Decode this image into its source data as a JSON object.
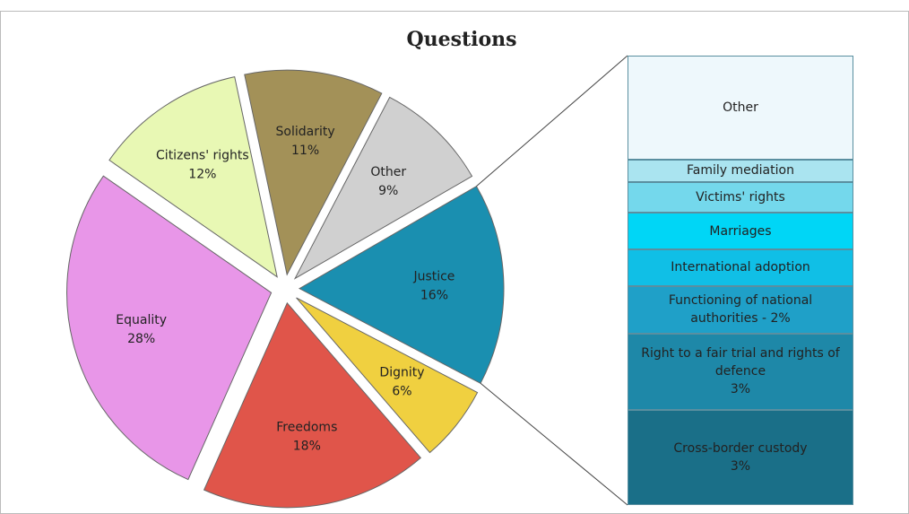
{
  "chart_data": {
    "type": "pie-of-bar",
    "title": "Questions",
    "categories": [
      "Justice",
      "Dignity",
      "Freedoms",
      "Equality",
      "Citizens' rights",
      "Solidarity",
      "Other"
    ],
    "values": [
      16,
      6,
      18,
      28,
      12,
      11,
      9
    ],
    "value_labels": [
      "16%",
      "6%",
      "18%",
      "28%",
      "12%",
      "11%",
      "9%"
    ],
    "colors": [
      "#1a8fb0",
      "#f0d040",
      "#e0554a",
      "#e896e8",
      "#e8f8b4",
      "#a39158",
      "#d0d0d0"
    ],
    "breakdown": {
      "categories": [
        "Cross-border custody",
        "Right to a fair trial and rights of defence",
        "Functioning of national authorities - 2%",
        "International adoption",
        "Marriages",
        "Victims' rights",
        "Family mediation",
        "Other"
      ],
      "values": [
        3.4,
        2.7,
        1.7,
        1.3,
        1.3,
        1.1,
        0.8,
        3.7
      ],
      "value_labels": [
        "3%",
        "3%",
        null,
        null,
        null,
        null,
        null,
        null
      ],
      "colors": [
        "#1a6f88",
        "#1e88a8",
        "#1fa0c8",
        "#10bfe6",
        "#00d6f6",
        "#74d8ec",
        "#aae4f0",
        "#eef8fc"
      ]
    }
  }
}
